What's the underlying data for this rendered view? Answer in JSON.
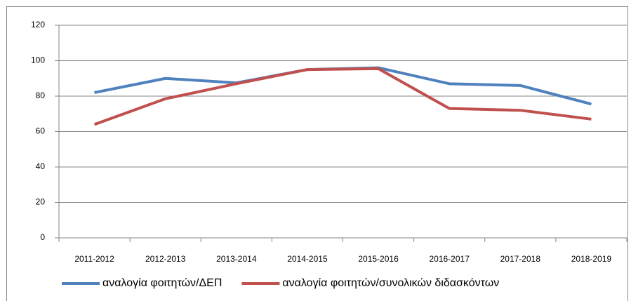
{
  "chart_data": {
    "type": "line",
    "categories": [
      "2011-2012",
      "2012-2013",
      "2013-2014",
      "2014-2015",
      "2015-2016",
      "2016-2017",
      "2017-2018",
      "2018-2019"
    ],
    "series": [
      {
        "name": "αναλογία φοιτητών/ΔΕΠ",
        "color": "#4f81bd",
        "values": [
          82,
          90,
          87.5,
          95,
          96,
          87,
          86,
          75.5
        ]
      },
      {
        "name": "αναλογία φοιτητών/συνολικών διδασκόντων",
        "color": "#c0504d",
        "values": [
          64,
          78.5,
          87,
          95,
          95.5,
          73,
          72,
          67
        ]
      }
    ],
    "ylim": [
      0,
      120
    ],
    "yticks": [
      0,
      20,
      40,
      60,
      80,
      100,
      120
    ],
    "grid": true,
    "legend": "bottom"
  }
}
